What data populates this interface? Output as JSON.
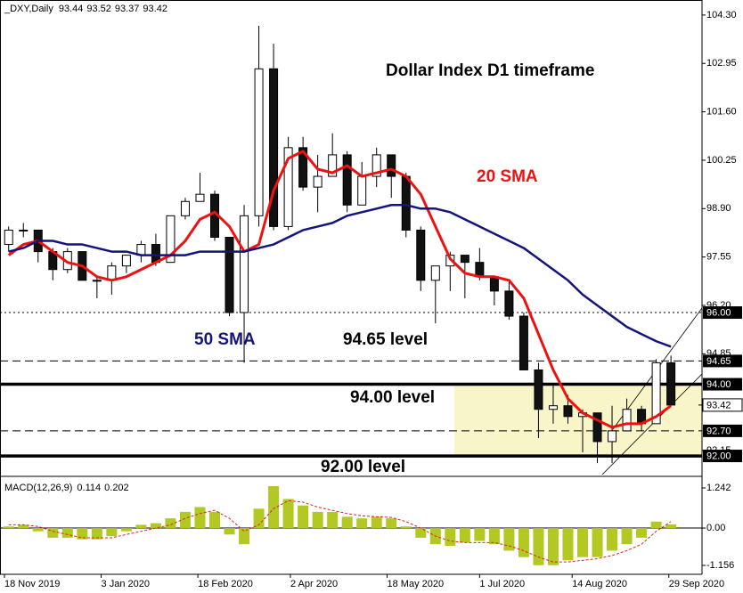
{
  "header": {
    "symbol": "_DXY,Daily",
    "ohlc": [
      93.44,
      93.52,
      93.37,
      93.42
    ]
  },
  "chart_data": [
    {
      "type": "candlestick",
      "title": "Dollar Index D1 timeframe",
      "x": [
        "18 Nov 2019",
        "25 Nov 2019",
        "2 Dec 2019",
        "9 Dec 2019",
        "16 Dec 2019",
        "23 Dec 2019",
        "30 Dec 2019",
        "6 Jan 2020",
        "13 Jan 2020",
        "20 Jan 2020",
        "27 Jan 2020",
        "3 Feb 2020",
        "10 Feb 2020",
        "17 Feb 2020",
        "24 Feb 2020",
        "2 Mar 2020",
        "9 Mar 2020",
        "16 Mar 2020",
        "23 Mar 2020",
        "30 Mar 2020",
        "6 Apr 2020",
        "13 Apr 2020",
        "20 Apr 2020",
        "27 Apr 2020",
        "4 May 2020",
        "11 May 2020",
        "18 May 2020",
        "25 May 2020",
        "1 Jun 2020",
        "8 Jun 2020",
        "15 Jun 2020",
        "22 Jun 2020",
        "29 Jun 2020",
        "6 Jul 2020",
        "13 Jul 2020",
        "20 Jul 2020",
        "27 Jul 2020",
        "3 Aug 2020",
        "10 Aug 2020",
        "17 Aug 2020",
        "24 Aug 2020",
        "31 Aug 2020",
        "7 Sep 2020",
        "14 Sep 2020",
        "21 Sep 2020",
        "28 Sep 2020"
      ],
      "open": [
        97.9,
        98.3,
        98.3,
        97.7,
        97.2,
        97.7,
        96.9,
        96.9,
        97.3,
        97.6,
        97.9,
        97.4,
        98.7,
        99.1,
        99.3,
        98.1,
        96.0,
        98.7,
        102.8,
        98.4,
        100.6,
        99.5,
        99.8,
        100.4,
        99.0,
        99.8,
        100.4,
        99.8,
        98.3,
        96.9,
        97.3,
        97.6,
        97.4,
        97.0,
        96.6,
        95.9,
        94.4,
        93.3,
        93.4,
        93.1,
        93.2,
        92.4,
        92.7,
        93.3,
        92.9,
        94.6
      ],
      "high": [
        98.4,
        98.5,
        98.3,
        97.8,
        97.8,
        97.7,
        97.0,
        97.4,
        97.6,
        98.0,
        98.2,
        98.7,
        99.2,
        99.9,
        99.4,
        98.1,
        99.0,
        104.0,
        103.5,
        100.9,
        100.9,
        100.4,
        101.0,
        100.5,
        100.2,
        100.6,
        100.4,
        99.9,
        98.4,
        97.3,
        97.7,
        97.6,
        97.8,
        97.0,
        96.9,
        96.0,
        94.6,
        94.0,
        93.7,
        93.3,
        93.2,
        93.4,
        93.6,
        93.4,
        94.7,
        94.8
      ],
      "low": [
        97.7,
        98.1,
        97.4,
        96.9,
        97.1,
        96.9,
        96.4,
        96.5,
        97.1,
        97.4,
        97.3,
        97.4,
        98.6,
        99.1,
        98.0,
        95.9,
        94.6,
        98.4,
        98.3,
        98.3,
        99.4,
        98.8,
        99.8,
        98.8,
        99.0,
        99.5,
        99.2,
        98.1,
        96.6,
        95.7,
        96.6,
        96.4,
        96.9,
        96.2,
        95.8,
        94.4,
        92.5,
        92.9,
        92.9,
        92.1,
        91.8,
        91.8,
        92.7,
        92.7,
        92.9,
        93.4
      ],
      "close": [
        98.3,
        98.3,
        97.7,
        97.2,
        97.7,
        96.9,
        96.9,
        97.3,
        97.6,
        97.9,
        97.4,
        98.7,
        99.1,
        99.3,
        98.1,
        96.0,
        98.7,
        102.8,
        98.4,
        100.6,
        99.5,
        99.8,
        100.4,
        99.0,
        99.8,
        100.4,
        99.8,
        98.3,
        96.9,
        97.3,
        97.6,
        97.4,
        97.0,
        96.6,
        95.9,
        94.4,
        93.3,
        93.4,
        93.1,
        93.2,
        92.4,
        92.7,
        93.3,
        92.9,
        94.6,
        93.42
      ],
      "up_color": "#ffffff",
      "down_color": "#111111",
      "series": [
        {
          "name": "20 SMA",
          "color": "#ee1111",
          "values": [
            97.6,
            97.9,
            98.0,
            97.7,
            97.4,
            97.3,
            97.0,
            96.9,
            97.0,
            97.2,
            97.4,
            97.6,
            98.0,
            98.6,
            98.8,
            98.4,
            97.7,
            97.9,
            99.4,
            100.3,
            100.5,
            100.0,
            99.9,
            100.1,
            99.8,
            99.9,
            100.0,
            99.8,
            99.3,
            98.4,
            97.5,
            97.1,
            97.0,
            97.0,
            96.9,
            96.4,
            95.4,
            94.4,
            93.6,
            93.2,
            93.0,
            92.8,
            92.9,
            92.9,
            93.1,
            93.4
          ]
        },
        {
          "name": "50 SMA",
          "color": "#14147a",
          "values": [
            97.7,
            97.8,
            98.0,
            98.0,
            97.9,
            97.9,
            97.8,
            97.7,
            97.7,
            97.6,
            97.6,
            97.6,
            97.6,
            97.7,
            97.7,
            97.7,
            97.7,
            97.8,
            97.9,
            98.1,
            98.3,
            98.4,
            98.5,
            98.7,
            98.8,
            98.9,
            99.0,
            99.0,
            98.9,
            98.9,
            98.8,
            98.6,
            98.4,
            98.2,
            98.0,
            97.8,
            97.5,
            97.2,
            96.9,
            96.5,
            96.2,
            95.9,
            95.6,
            95.4,
            95.2,
            95.05
          ]
        }
      ],
      "levels": [
        {
          "value": 96,
          "label": "96.00",
          "style": "dotted"
        },
        {
          "value": 94.65,
          "label": "94.65",
          "style": "dashed",
          "text": "94.65 level"
        },
        {
          "value": 94,
          "label": "94.00",
          "style": "thick",
          "text": "94.00 level"
        },
        {
          "value": 92.7,
          "label": "92.70",
          "style": "dashed"
        },
        {
          "value": 92,
          "label": "92.00",
          "style": "thick",
          "text": "92.00 level"
        }
      ],
      "last_price": 93.42,
      "ylim": [
        91.48,
        104.67
      ],
      "yticks": [
        {
          "value": 104.3,
          "label": "104.30"
        },
        102.95,
        {
          "value": 101.6,
          "label": "101.60"
        },
        100.25,
        {
          "value": 98.9,
          "label": "98.90"
        },
        97.55,
        {
          "value": 96.2,
          "label": "96.20"
        },
        94.85,
        92.15
      ],
      "xticks": [
        "18 Nov 2019",
        "3 Jan 2020",
        "18 Feb 2020",
        "2 Apr 2020",
        "18 May 2020",
        "1 Jul 2020",
        "14 Aug 2020",
        "29 Sep 2020"
      ]
    },
    {
      "type": "macd",
      "title": "MACD(12,26,9)",
      "histogram": {
        "color": "#b4c824",
        "values": [
          0.05,
          0.1,
          -0.1,
          -0.3,
          -0.3,
          -0.35,
          -0.35,
          -0.25,
          -0.1,
          0.1,
          0.15,
          0.3,
          0.5,
          0.65,
          0.5,
          -0.2,
          -0.5,
          0.6,
          1.3,
          0.9,
          0.7,
          0.5,
          0.5,
          0.35,
          0.3,
          0.35,
          0.3,
          0.05,
          -0.3,
          -0.5,
          -0.55,
          -0.45,
          -0.4,
          -0.5,
          -0.7,
          -0.9,
          -1.15,
          -1.15,
          -1.0,
          -0.9,
          -0.9,
          -0.7,
          -0.5,
          -0.3,
          0.2,
          0.114
        ]
      },
      "signal": {
        "color": "#e02020",
        "values": [
          0.1,
          0.1,
          0.05,
          -0.1,
          -0.2,
          -0.3,
          -0.3,
          -0.3,
          -0.2,
          -0.1,
          0.0,
          0.1,
          0.3,
          0.45,
          0.55,
          0.3,
          -0.1,
          0.1,
          0.6,
          0.85,
          0.8,
          0.65,
          0.55,
          0.45,
          0.38,
          0.35,
          0.33,
          0.2,
          0.0,
          -0.25,
          -0.4,
          -0.45,
          -0.45,
          -0.45,
          -0.55,
          -0.7,
          -0.9,
          -1.05,
          -1.05,
          -1.0,
          -0.95,
          -0.85,
          -0.7,
          -0.5,
          -0.1,
          0.202
        ]
      },
      "ylim": [
        -1.377,
        1.518
      ],
      "yticks": [
        1.242,
        {
          "value": 0,
          "label": "0.00"
        },
        -1.156
      ]
    }
  ]
}
